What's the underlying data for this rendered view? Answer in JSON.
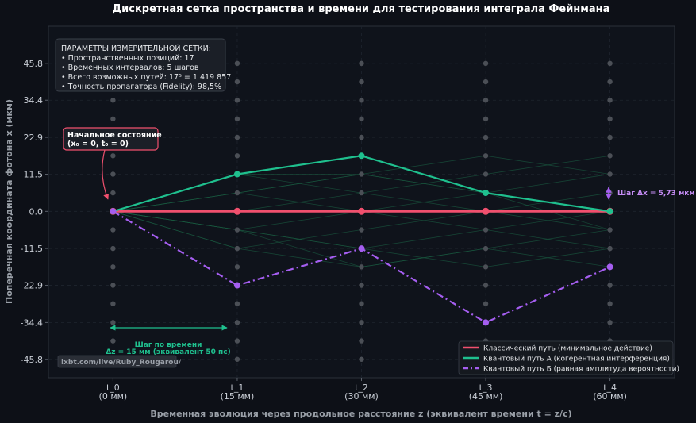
{
  "chart_data": {
    "type": "line",
    "title": "Дискретная сетка пространства и времени для тестирования интеграла Фейнмана",
    "xlabel": "Временная эволюция через продольное расстояние z (эквивалент времени t = z/c)",
    "ylabel": "Поперечная координата фотона x (мкм)",
    "categories": [
      {
        "name": "t_0",
        "sub": "(0 мм)"
      },
      {
        "name": "t_1",
        "sub": "(15 мм)"
      },
      {
        "name": "t_2",
        "sub": "(30 мм)"
      },
      {
        "name": "t_3",
        "sub": "(45 мм)"
      },
      {
        "name": "t_4",
        "sub": "(60 мм)"
      }
    ],
    "x": [
      0,
      1,
      2,
      3,
      4
    ],
    "ylim": [
      -51.5,
      57.3
    ],
    "yticks": [
      45.8,
      34.4,
      22.9,
      11.5,
      0.0,
      -11.5,
      -22.9,
      -34.4,
      -45.8
    ],
    "ytick_labels": [
      "45.8",
      "34.4",
      "22.9",
      "11.5",
      "0.0",
      "-11.5",
      "-22.9",
      "-34.4",
      "-45.8"
    ],
    "grid_positions": [
      -45.8,
      -40.1,
      -34.4,
      -28.6,
      -22.9,
      -17.2,
      -11.5,
      -5.7,
      0,
      5.7,
      11.5,
      17.2,
      22.9,
      28.6,
      34.4,
      40.1,
      45.8
    ],
    "grid": true,
    "legend_position": "bottom-right",
    "series": [
      {
        "name": "Классический путь (минимальное действие)",
        "values": [
          0,
          0,
          0,
          0,
          0
        ],
        "color": "#f0506e",
        "style": "solid"
      },
      {
        "name": "Квантовый путь А (когерентная интерференция)",
        "values": [
          0,
          11.5,
          17.2,
          5.7,
          0
        ],
        "color": "#1fc08e",
        "style": "solid"
      },
      {
        "name": "Квантовый путь Б (равная амплитуда вероятности)",
        "values": [
          0,
          -22.9,
          -11.5,
          -34.4,
          -17.2
        ],
        "color": "#a55ef0",
        "style": "dashdot"
      }
    ],
    "faint_paths": [
      [
        0,
        5.7,
        11.5,
        5.7,
        0
      ],
      [
        0,
        -5.7,
        -11.5,
        -5.7,
        0
      ],
      [
        0,
        5.7,
        0,
        -5.7,
        -11.5
      ],
      [
        0,
        -11.5,
        -5.7,
        0,
        5.7
      ],
      [
        0,
        11.5,
        5.7,
        11.5,
        17.2
      ],
      [
        0,
        -5.7,
        -17.2,
        -11.5,
        -5.7
      ],
      [
        0,
        5.7,
        11.5,
        17.2,
        11.5
      ],
      [
        0,
        -11.5,
        -17.2,
        -11.5,
        -17.2
      ],
      [
        0,
        0,
        5.7,
        0,
        -5.7
      ],
      [
        0,
        -5.7,
        0,
        5.7,
        11.5
      ],
      [
        0,
        11.5,
        11.5,
        5.7,
        -5.7
      ],
      [
        0,
        -5.7,
        -11.5,
        -17.2,
        -11.5
      ]
    ],
    "info_box": [
      "ПАРАМЕТРЫ ИЗМЕРИТЕЛЬНОЙ СЕТКИ:",
      "• Пространственных позиций: 17",
      "• Временных интервалов: 5 шагов",
      "• Всего возможных путей: 17⁵ = 1 419 857",
      "• Точность пропагатора (Fidelity): 98,5%"
    ],
    "initial_state": {
      "line1": "Начальное состояние",
      "line2": "(x₀ = 0, t₀ = 0)"
    },
    "dx_label": "Шаг Δx = 5,73 мкм",
    "dt_label_1": "Шаг по времени",
    "dt_label_2": "Δz = 15 мм (эквивалент 50 пс)",
    "watermark": "ixbt.com/live/Ruby_Rougarou/",
    "colors": {
      "background": "#0d1017",
      "plot_bg": "#0f131b",
      "node": "#4b4f56",
      "faint": "#1a5a40"
    }
  }
}
